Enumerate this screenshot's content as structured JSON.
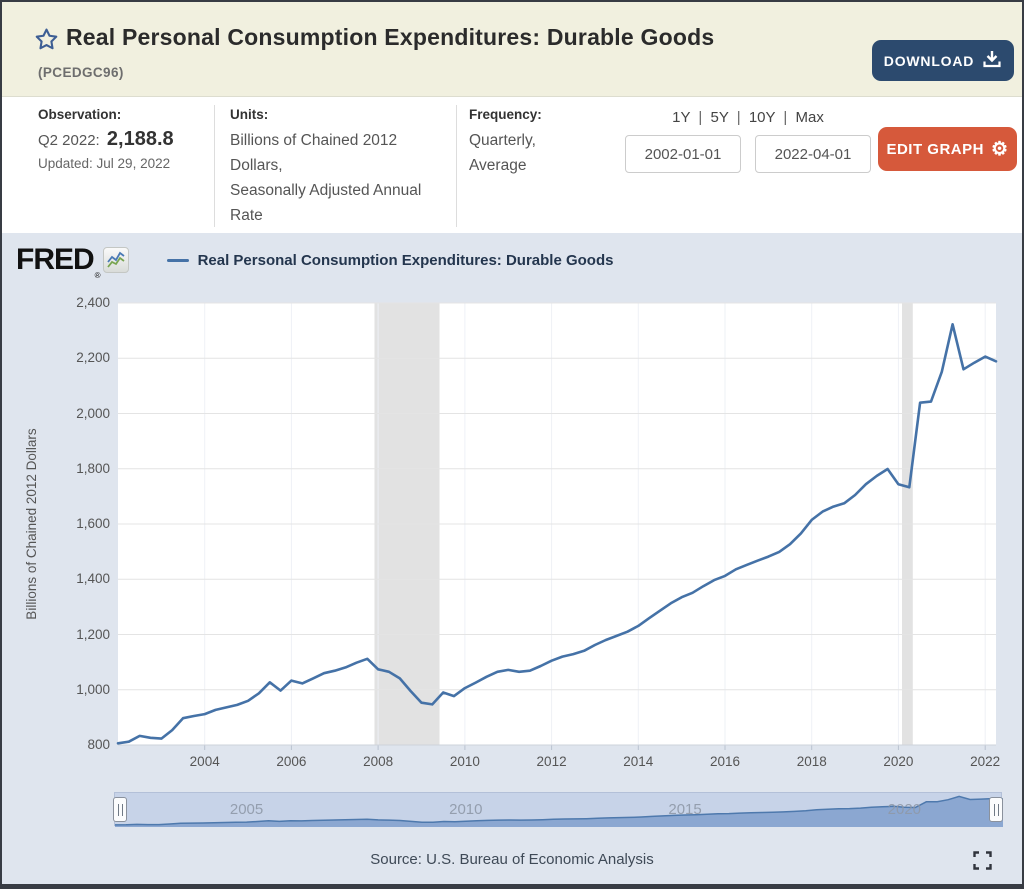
{
  "header": {
    "title": "Real Personal Consumption Expenditures: Durable Goods",
    "series_id": "(PCEDGC96)",
    "download_label": "DOWNLOAD"
  },
  "toolbar": {
    "observation_label": "Observation:",
    "observation_period": "Q2 2022:",
    "observation_value": "2,188.8",
    "observation_updated": "Updated: Jul 29, 2022",
    "units_label": "Units:",
    "units_value": "Billions of Chained 2012 Dollars,",
    "units_value_2": "Seasonally Adjusted Annual Rate",
    "frequency_label": "Frequency:",
    "frequency_value": "Quarterly,",
    "frequency_value_2": "Average",
    "range_1y": "1Y",
    "range_5y": "5Y",
    "range_10y": "10Y",
    "range_max": "Max",
    "range_separator": "|",
    "date_start": "2002-01-01",
    "date_end": "2022-04-01",
    "edit_graph_label": "EDIT GRAPH"
  },
  "graph": {
    "brand": "FRED",
    "brand_reg": "®",
    "legend_label": "Real Personal Consumption Expenditures: Durable Goods",
    "source": "Source: U.S. Bureau of Economic Analysis"
  },
  "chart_data": {
    "type": "line",
    "title": "Real Personal Consumption Expenditures: Durable Goods",
    "ylabel": "Billions of Chained 2012 Dollars",
    "xlabel": "",
    "x_start": 2002.0,
    "x_step": 0.25,
    "xlim": [
      2002.0,
      2022.25
    ],
    "ylim": [
      800,
      2400
    ],
    "x_ticks": [
      2004,
      2006,
      2008,
      2010,
      2012,
      2014,
      2016,
      2018,
      2020,
      2022
    ],
    "y_ticks": [
      800,
      1000,
      1200,
      1400,
      1600,
      1800,
      2000,
      2200,
      2400
    ],
    "slider_year_labels": [
      2005,
      2010,
      2015,
      2020
    ],
    "line_color": "#4572a7",
    "grid_color": "#e4e4e4",
    "recession_color": "#e2e2e2",
    "recessions": [
      [
        2007.917,
        2009.417
      ],
      [
        2020.083,
        2020.333
      ]
    ],
    "values": [
      806,
      812,
      833,
      826,
      823,
      854,
      897,
      905,
      912,
      927,
      936,
      945,
      960,
      987,
      1027,
      997,
      1033,
      1023,
      1041,
      1060,
      1069,
      1081,
      1098,
      1112,
      1074,
      1065,
      1041,
      995,
      953,
      947,
      990,
      977,
      1006,
      1026,
      1047,
      1065,
      1072,
      1065,
      1069,
      1086,
      1105,
      1120,
      1129,
      1141,
      1162,
      1180,
      1195,
      1210,
      1231,
      1259,
      1286,
      1313,
      1335,
      1351,
      1375,
      1397,
      1412,
      1436,
      1452,
      1467,
      1482,
      1499,
      1527,
      1566,
      1615,
      1645,
      1663,
      1675,
      1705,
      1744,
      1774,
      1799,
      1744,
      1733,
      2039,
      2043,
      2151,
      2323,
      2160,
      2184,
      2206,
      2188.8
    ]
  }
}
